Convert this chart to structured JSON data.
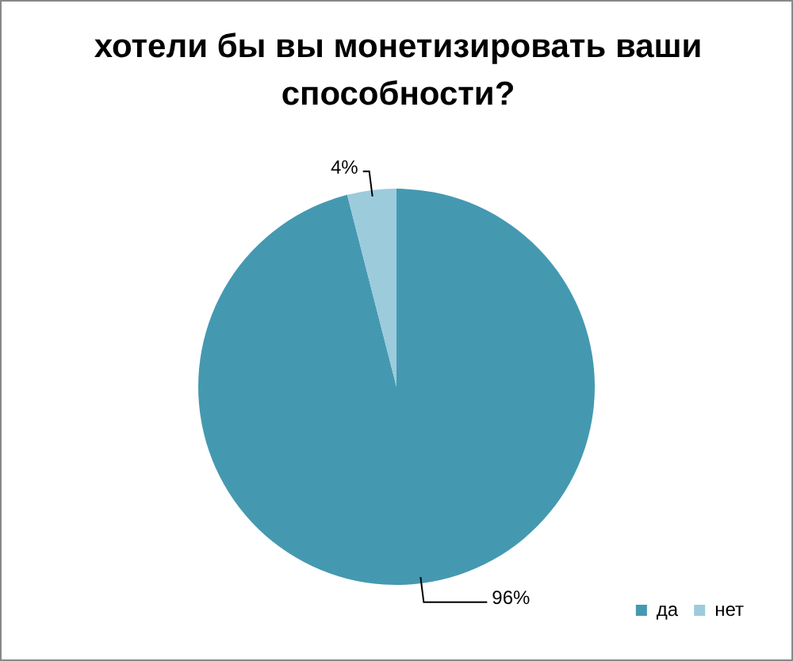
{
  "chart_data": {
    "type": "pie",
    "title": "хотели бы вы монетизировать ваши способности?",
    "categories": [
      "да",
      "нет"
    ],
    "values": [
      96,
      4
    ],
    "colors": [
      "#4499b0",
      "#9ccbdc"
    ],
    "value_labels": [
      "96%",
      "4%"
    ],
    "legend": "bottom right"
  }
}
